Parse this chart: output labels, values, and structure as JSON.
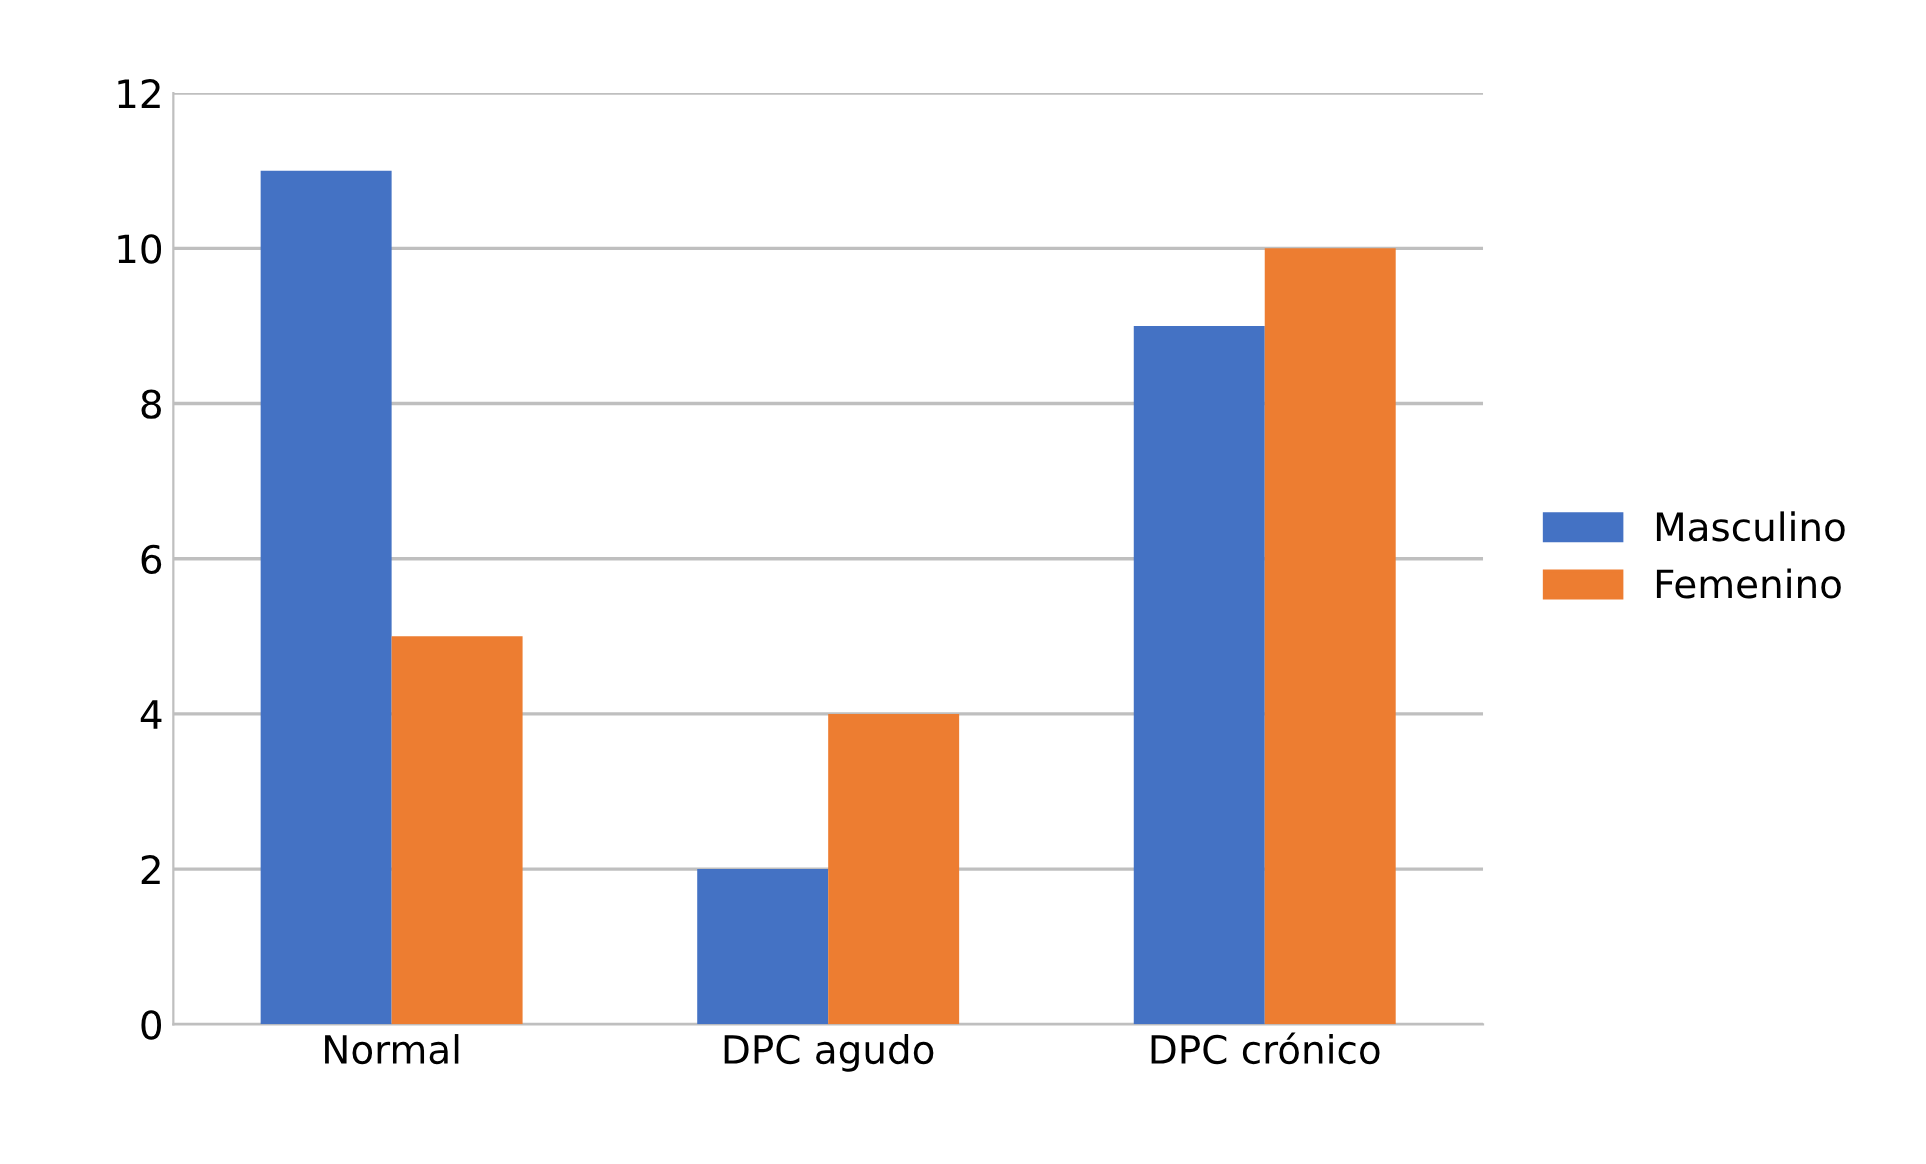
{
  "chart_data": {
    "type": "bar",
    "categories": [
      "Normal",
      "DPC agudo",
      "DPC crónico"
    ],
    "series": [
      {
        "name": "Masculino",
        "color": "#4472c4",
        "values": [
          11,
          2,
          9
        ]
      },
      {
        "name": "Femenino",
        "color": "#ed7d31",
        "values": [
          5,
          4,
          10
        ]
      }
    ],
    "ylim": [
      0,
      12
    ],
    "yticks": [
      0,
      2,
      4,
      6,
      8,
      10,
      12
    ],
    "grid": "y",
    "legend": "right"
  }
}
